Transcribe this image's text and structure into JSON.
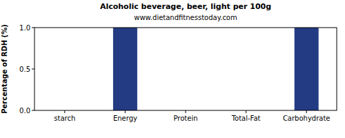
{
  "chart_data": {
    "type": "bar",
    "title": "Alcoholic beverage, beer, light per 100g",
    "subtitle": "www.dietandfitnesstoday.com",
    "y_label": "Percentage of RDH (%)",
    "categories": [
      "starch",
      "Energy",
      "Protein",
      "Total-Fat",
      "Carbohydrate"
    ],
    "values": [
      0,
      1,
      0,
      0,
      1
    ],
    "color": "#233b83",
    "ylim": [
      0,
      1
    ],
    "yticks": [
      {
        "value": 0,
        "label": "0.0"
      },
      {
        "value": 0.5,
        "label": "0.5"
      },
      {
        "value": 1,
        "label": "1.0"
      }
    ],
    "grid": false
  }
}
